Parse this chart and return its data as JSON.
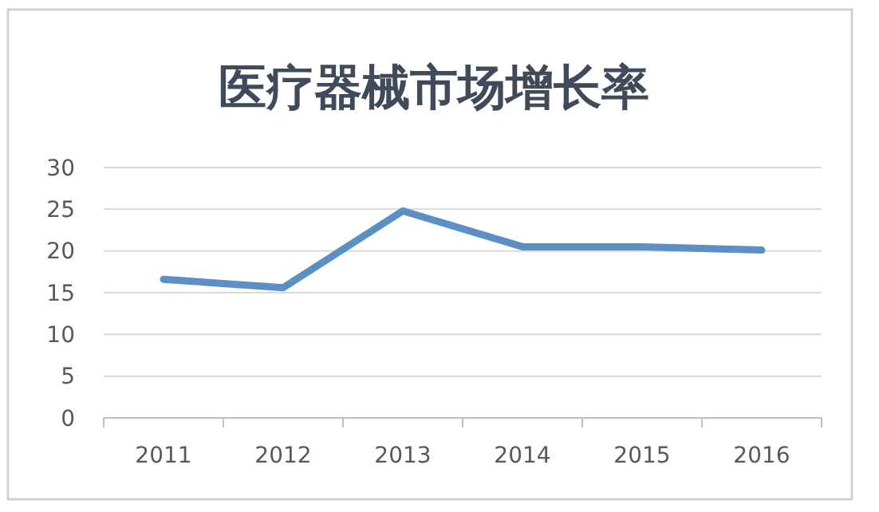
{
  "chart_data": {
    "type": "line",
    "title": "医疗器械市场增长率",
    "categories": [
      "2011",
      "2012",
      "2013",
      "2014",
      "2015",
      "2016"
    ],
    "series": [
      {
        "color": "#5b8fc6",
        "values": [
          16.6,
          15.6,
          24.8,
          20.5,
          20.5,
          20.1
        ]
      }
    ],
    "ylim": [
      0,
      30
    ],
    "yticks": [
      0,
      5,
      10,
      15,
      20,
      25,
      30
    ],
    "grid": "y",
    "marker": "none",
    "line_style": "solid"
  }
}
